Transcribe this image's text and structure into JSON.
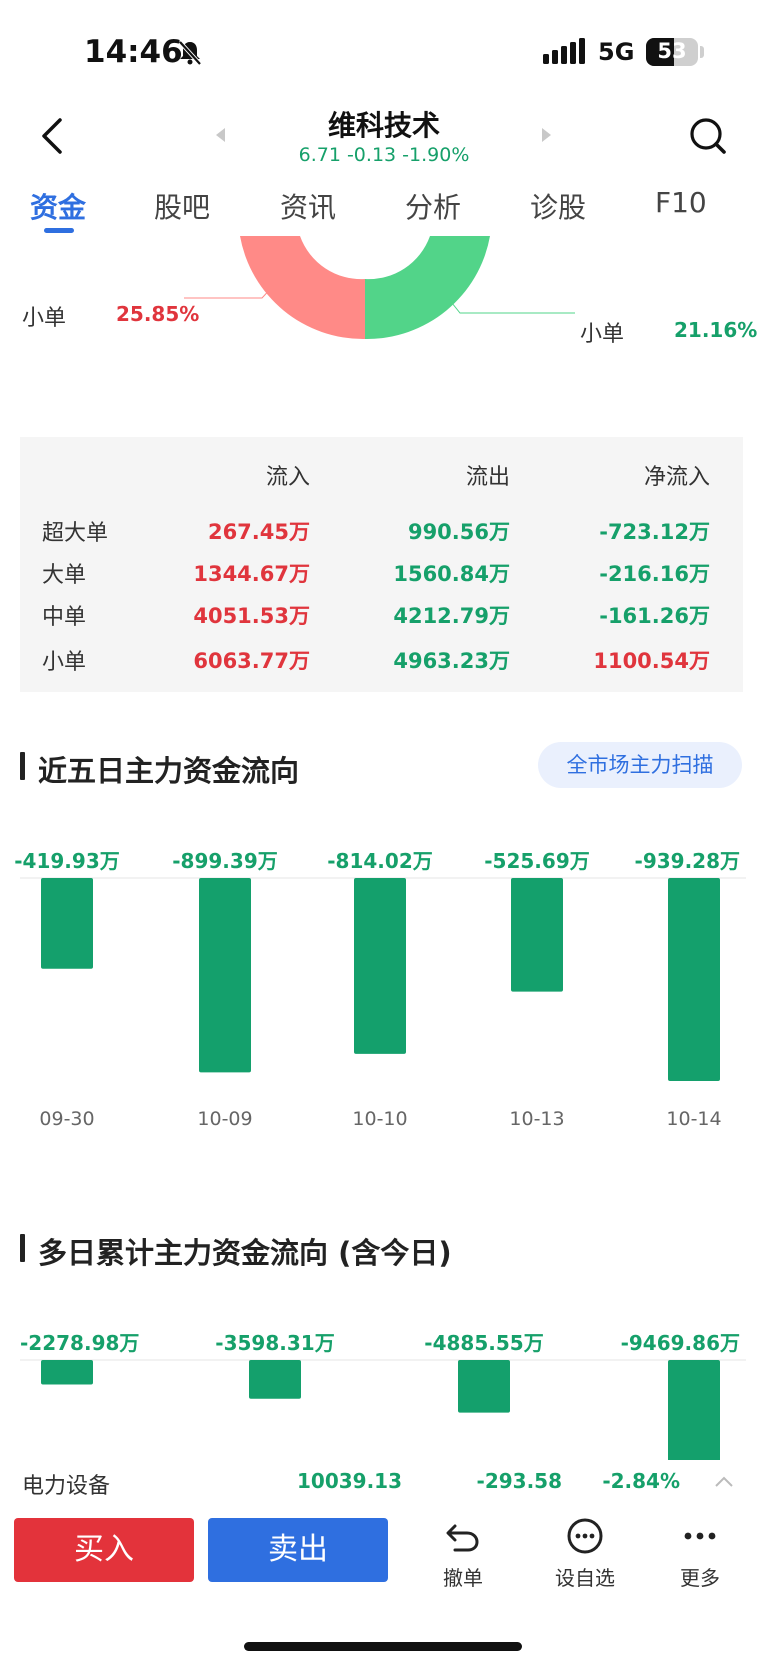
{
  "status": {
    "time": "14:46",
    "network": "5G",
    "battery": "53",
    "battery_level": 0.53
  },
  "header": {
    "title": "维科技术",
    "quote": "6.71 -0.13 -1.90%"
  },
  "tabs": [
    "资金",
    "股吧",
    "资讯",
    "分析",
    "诊股",
    "F10"
  ],
  "donut": {
    "left_label": "小单",
    "left_pct": "25.85%",
    "right_label": "小单",
    "right_pct": "21.16%",
    "colors": {
      "inflow": "#ff8a87",
      "outflow": "#52d489"
    }
  },
  "flow_table": {
    "headers": [
      "流入",
      "流出",
      "净流入"
    ],
    "rows": [
      {
        "label": "超大单",
        "in": "267.45万",
        "out": "990.56万",
        "net": "-723.12万",
        "net_dir": "green"
      },
      {
        "label": "大单",
        "in": "1344.67万",
        "out": "1560.84万",
        "net": "-216.16万",
        "net_dir": "green"
      },
      {
        "label": "中单",
        "in": "4051.53万",
        "out": "4212.79万",
        "net": "-161.26万",
        "net_dir": "green"
      },
      {
        "label": "小单",
        "in": "6063.77万",
        "out": "4963.23万",
        "net": "1100.54万",
        "net_dir": "red"
      }
    ]
  },
  "section1": {
    "title": "近五日主力资金流向",
    "button": "全市场主力扫描"
  },
  "section2": {
    "title": "多日累计主力资金流向 (含今日)"
  },
  "chart_data": [
    {
      "type": "bar",
      "title": "近五日主力资金流向",
      "categories": [
        "09-30",
        "10-09",
        "10-10",
        "10-13",
        "10-14"
      ],
      "values": [
        -419.93,
        -899.39,
        -814.02,
        -525.69,
        -939.28
      ],
      "labels": [
        "-419.93万",
        "-899.39万",
        "-814.02万",
        "-525.69万",
        "-939.28万"
      ],
      "color": "#14a06c"
    },
    {
      "type": "bar",
      "title": "多日累计主力资金流向 (含今日)",
      "values": [
        -2278.98,
        -3598.31,
        -4885.55,
        -9469.86
      ],
      "labels": [
        "-2278.98万",
        "-3598.31万",
        "-4885.55万",
        "-9469.86万"
      ],
      "color": "#14a06c"
    }
  ],
  "sector": {
    "name": "电力设备",
    "v1": "10039.13",
    "v2": "-293.58",
    "v3": "-2.84%"
  },
  "bottom": {
    "buy": "买入",
    "sell": "卖出",
    "cancel": "撤单",
    "watchlist": "设自选",
    "more": "更多"
  }
}
